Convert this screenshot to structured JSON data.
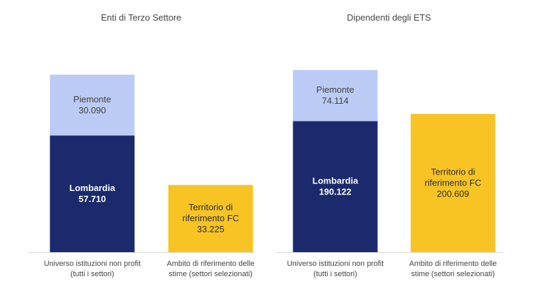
{
  "chart_data": [
    {
      "type": "bar",
      "stacked": true,
      "title": "Enti di Terzo Settore",
      "categories": [
        [
          "Universo istituzioni non profit",
          "(tutti i settori)"
        ],
        [
          "Ambito di riferimento delle",
          "stime (settori selezionati)"
        ]
      ],
      "ylim": [
        0,
        105000
      ],
      "grid": false,
      "legend": "none",
      "series": [
        {
          "values": [
            57710,
            0
          ],
          "color": "#1a2a6c"
        },
        {
          "values": [
            30090,
            0
          ],
          "color": "#bccbf5"
        },
        {
          "values": [
            0,
            33225
          ],
          "color": "#f7c424"
        }
      ],
      "data_labels": [
        {
          "category": 0,
          "series": 0,
          "lines": [
            "Lombardia",
            "57.710"
          ]
        },
        {
          "category": 0,
          "series": 1,
          "lines": [
            "Piemonte",
            "30.090"
          ]
        },
        {
          "category": 1,
          "series": 2,
          "lines": [
            "Territorio di",
            "riferimento FC",
            "33.225"
          ]
        }
      ]
    },
    {
      "type": "bar",
      "stacked": true,
      "title": "Dipendenti degli ETS",
      "categories": [
        [
          "Universo istituzioni non profit",
          "(tutti i settori)"
        ],
        [
          "Ambito di riferimento delle",
          "stime (settori selezionati)"
        ]
      ],
      "ylim": [
        0,
        308000
      ],
      "grid": false,
      "legend": "none",
      "series": [
        {
          "values": [
            190122,
            0
          ],
          "color": "#1a2a6c"
        },
        {
          "values": [
            74114,
            0
          ],
          "color": "#bccbf5"
        },
        {
          "values": [
            0,
            200609
          ],
          "color": "#f7c424"
        }
      ],
      "data_labels": [
        {
          "category": 0,
          "series": 0,
          "lines": [
            "Lombardia",
            "190.122"
          ]
        },
        {
          "category": 0,
          "series": 1,
          "lines": [
            "Piemonte",
            "74.114"
          ]
        },
        {
          "category": 1,
          "series": 2,
          "lines": [
            "Territorio di",
            "riferimento FC",
            "200.609"
          ]
        }
      ]
    }
  ]
}
